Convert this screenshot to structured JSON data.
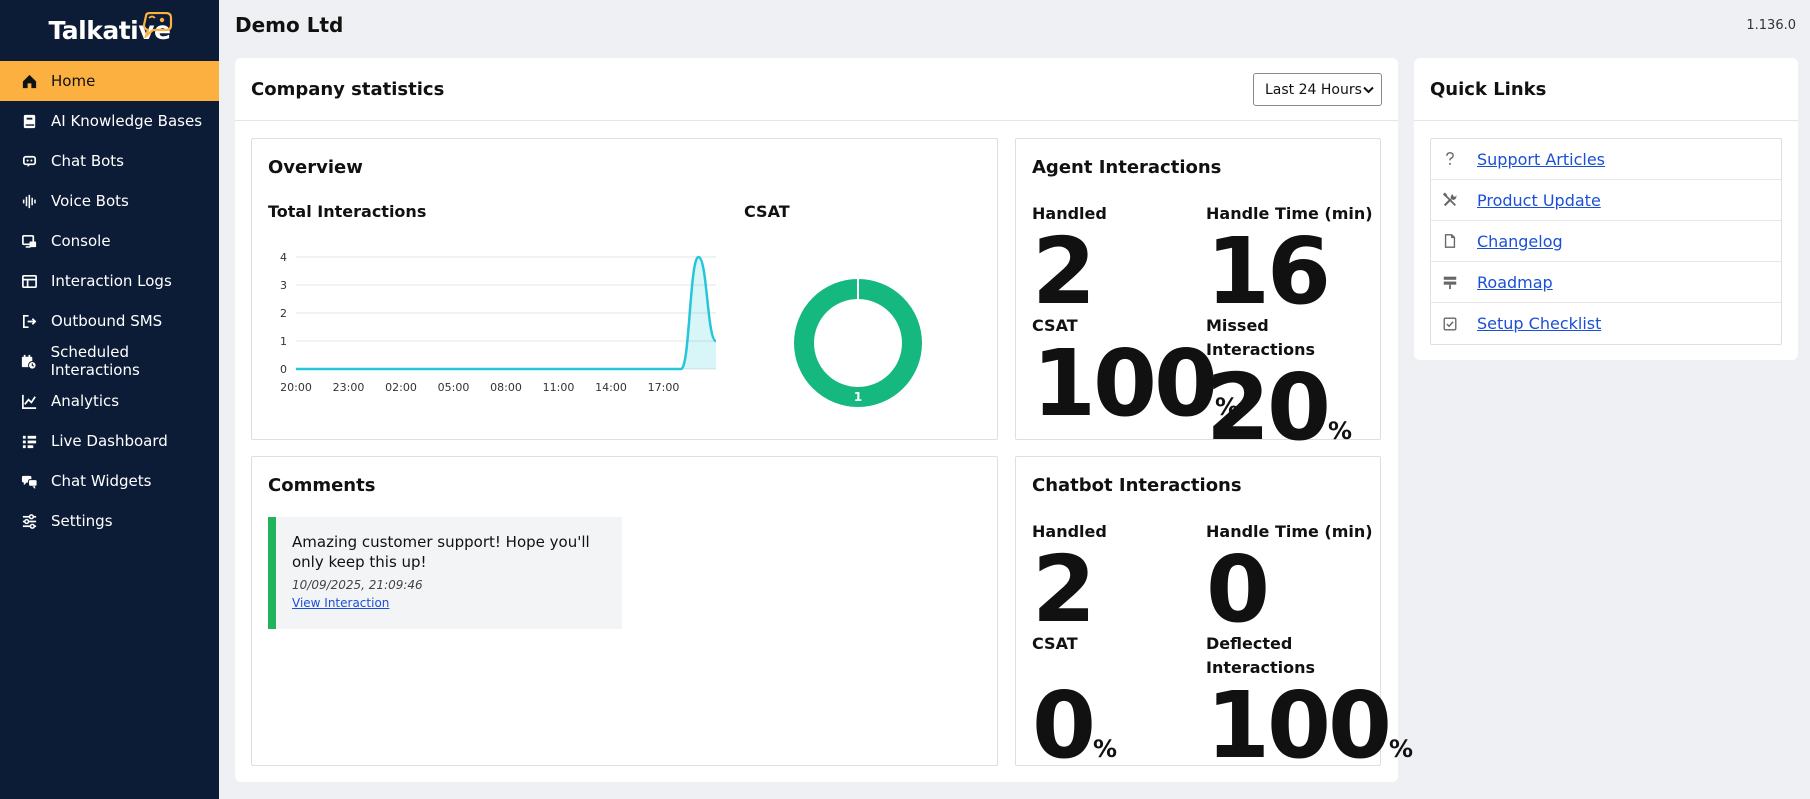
{
  "brand": {
    "name": "Talkative",
    "accent": "#fbb040",
    "sidebar_bg": "#0c1c36"
  },
  "sidebar": {
    "items": [
      {
        "label": "Home",
        "icon": "home-icon",
        "active": true
      },
      {
        "label": "AI Knowledge Bases",
        "icon": "book-icon"
      },
      {
        "label": "Chat Bots",
        "icon": "chat-bot-icon"
      },
      {
        "label": "Voice Bots",
        "icon": "waveform-icon"
      },
      {
        "label": "Console",
        "icon": "console-icon"
      },
      {
        "label": "Interaction Logs",
        "icon": "table-icon"
      },
      {
        "label": "Outbound SMS",
        "icon": "outbound-icon"
      },
      {
        "label": "Scheduled Interactions",
        "icon": "calendar-clock-icon"
      },
      {
        "label": "Analytics",
        "icon": "chart-icon"
      },
      {
        "label": "Live Dashboard",
        "icon": "dashboard-icon"
      },
      {
        "label": "Chat Widgets",
        "icon": "chat-widgets-icon"
      },
      {
        "label": "Settings",
        "icon": "sliders-icon"
      }
    ]
  },
  "header": {
    "org_name": "Demo Ltd",
    "version": "1.136.0"
  },
  "company": {
    "title": "Company statistics",
    "range_select": {
      "value": "Last 24 Hours"
    },
    "overview": {
      "title": "Overview",
      "total_label": "Total Interactions",
      "csat_label": "CSAT"
    },
    "agent": {
      "title": "Agent Interactions",
      "handled_label": "Handled",
      "handled_value": "2",
      "handle_time_label": "Handle Time (min)",
      "handle_time_value": "16",
      "csat_label": "CSAT",
      "csat_value": "100",
      "csat_unit": "%",
      "missed_label": "Missed Interactions",
      "missed_value": "20",
      "missed_unit": "%"
    },
    "chatbot": {
      "title": "Chatbot Interactions",
      "handled_label": "Handled",
      "handled_value": "2",
      "handle_time_label": "Handle Time (min)",
      "handle_time_value": "0",
      "csat_label": "CSAT",
      "csat_value": "0",
      "csat_unit": "%",
      "deflected_label": "Deflected Interactions",
      "deflected_value": "100",
      "deflected_unit": "%"
    },
    "comments": {
      "title": "Comments",
      "items": [
        {
          "text": "Amazing customer support! Hope you'll only keep this up!",
          "time": "10/09/2025, 21:09:46",
          "link": "View Interaction"
        }
      ]
    }
  },
  "quick_links": {
    "title": "Quick Links",
    "items": [
      {
        "label": "Support Articles",
        "icon": "question-icon"
      },
      {
        "label": "Product Update",
        "icon": "tools-icon"
      },
      {
        "label": "Changelog",
        "icon": "document-icon"
      },
      {
        "label": "Roadmap",
        "icon": "signpost-icon"
      },
      {
        "label": "Setup Checklist",
        "icon": "checkbox-icon"
      }
    ]
  },
  "chart_data": [
    {
      "type": "area",
      "title": "Total Interactions",
      "x": [
        "20:00",
        "21:00",
        "22:00",
        "23:00",
        "00:00",
        "01:00",
        "02:00",
        "03:00",
        "04:00",
        "05:00",
        "06:00",
        "07:00",
        "08:00",
        "09:00",
        "10:00",
        "11:00",
        "12:00",
        "13:00",
        "14:00",
        "15:00",
        "16:00",
        "17:00",
        "18:00",
        "19:00",
        "20:00"
      ],
      "tick_labels": [
        "20:00",
        "23:00",
        "02:00",
        "05:00",
        "08:00",
        "11:00",
        "14:00",
        "17:00"
      ],
      "y_ticks": [
        "0",
        "1",
        "2",
        "3",
        "4"
      ],
      "values": [
        0,
        0,
        0,
        0,
        0,
        0,
        0,
        0,
        0,
        0,
        0,
        0,
        0,
        0,
        0,
        0,
        0,
        0,
        0,
        0,
        0,
        0,
        0,
        4,
        1
      ],
      "ylim": [
        0,
        4
      ],
      "grid": true,
      "color": "#26c6da"
    },
    {
      "type": "pie",
      "title": "CSAT",
      "donut": true,
      "slices": [
        {
          "value": 1,
          "label": "1",
          "color": "#15b87e"
        }
      ]
    }
  ]
}
